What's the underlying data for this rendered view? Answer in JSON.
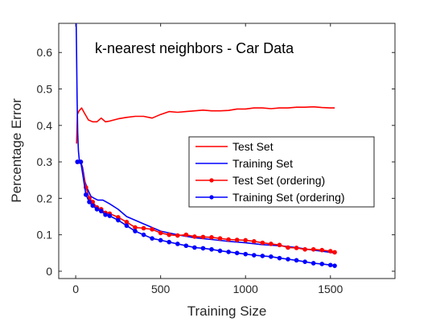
{
  "chart_data": {
    "type": "line",
    "title": "k-nearest neighbors - Car Data",
    "xlabel": "Training Size",
    "ylabel": "Percentage Error",
    "xlim": [
      -100,
      1880
    ],
    "ylim": [
      -0.02,
      0.68
    ],
    "xticks": [
      0,
      500,
      1000,
      1500
    ],
    "yticks": [
      0,
      0.1,
      0.2,
      0.3,
      0.4,
      0.5,
      0.6
    ],
    "xtick_labels": [
      "0",
      "500",
      "1000",
      "1500"
    ],
    "ytick_labels": [
      "0",
      "0.1",
      "0.2",
      "0.3",
      "0.4",
      "0.5",
      "0.6"
    ],
    "grid": false,
    "legend_position": "middle-right",
    "series": [
      {
        "name": "Test Set",
        "color": "#ff0000",
        "marker": "none",
        "x": [
          5,
          10,
          20,
          35,
          50,
          75,
          100,
          125,
          150,
          175,
          200,
          250,
          300,
          350,
          400,
          450,
          500,
          550,
          600,
          650,
          700,
          750,
          800,
          850,
          900,
          950,
          1000,
          1050,
          1100,
          1150,
          1200,
          1250,
          1300,
          1350,
          1400,
          1450,
          1500,
          1525
        ],
        "values": [
          0.35,
          0.43,
          0.44,
          0.448,
          0.435,
          0.415,
          0.41,
          0.41,
          0.42,
          0.41,
          0.412,
          0.418,
          0.422,
          0.425,
          0.425,
          0.42,
          0.43,
          0.438,
          0.436,
          0.438,
          0.44,
          0.442,
          0.44,
          0.44,
          0.441,
          0.445,
          0.445,
          0.448,
          0.448,
          0.446,
          0.448,
          0.448,
          0.45,
          0.45,
          0.451,
          0.449,
          0.448,
          0.448
        ]
      },
      {
        "name": "Training Set",
        "color": "#0000ff",
        "marker": "none",
        "x": [
          3,
          5,
          8,
          12,
          16,
          22,
          30,
          40,
          55,
          70,
          90,
          110,
          130,
          160,
          200,
          250,
          300,
          400,
          500,
          600,
          700,
          800,
          900,
          1000,
          1100,
          1200,
          1300,
          1400,
          1500,
          1525
        ],
        "values": [
          0.68,
          0.6,
          0.48,
          0.38,
          0.33,
          0.3,
          0.3,
          0.285,
          0.245,
          0.225,
          0.205,
          0.2,
          0.195,
          0.195,
          0.185,
          0.17,
          0.15,
          0.13,
          0.11,
          0.1,
          0.092,
          0.087,
          0.082,
          0.078,
          0.073,
          0.07,
          0.065,
          0.058,
          0.052,
          0.05
        ]
      },
      {
        "name": "Test Set (ordering)",
        "color": "#ff0000",
        "marker": "circle",
        "x": [
          10,
          30,
          60,
          80,
          100,
          125,
          150,
          175,
          200,
          250,
          300,
          350,
          400,
          450,
          500,
          550,
          600,
          650,
          700,
          750,
          800,
          850,
          900,
          950,
          1000,
          1050,
          1100,
          1150,
          1200,
          1250,
          1300,
          1350,
          1400,
          1450,
          1500,
          1525
        ],
        "values": [
          0.3,
          0.3,
          0.23,
          0.2,
          0.19,
          0.175,
          0.17,
          0.16,
          0.158,
          0.148,
          0.135,
          0.12,
          0.118,
          0.115,
          0.105,
          0.1,
          0.098,
          0.1,
          0.095,
          0.094,
          0.093,
          0.09,
          0.087,
          0.086,
          0.085,
          0.082,
          0.078,
          0.075,
          0.072,
          0.065,
          0.064,
          0.06,
          0.06,
          0.058,
          0.055,
          0.052
        ]
      },
      {
        "name": "Training Set (ordering)",
        "color": "#0000ff",
        "marker": "circle",
        "x": [
          10,
          30,
          60,
          80,
          100,
          125,
          150,
          175,
          200,
          250,
          300,
          350,
          400,
          450,
          500,
          550,
          600,
          650,
          700,
          750,
          800,
          850,
          900,
          950,
          1000,
          1050,
          1100,
          1150,
          1200,
          1250,
          1300,
          1350,
          1400,
          1450,
          1500,
          1525
        ],
        "values": [
          0.3,
          0.3,
          0.21,
          0.19,
          0.18,
          0.17,
          0.165,
          0.155,
          0.152,
          0.14,
          0.125,
          0.11,
          0.1,
          0.09,
          0.085,
          0.08,
          0.075,
          0.07,
          0.065,
          0.063,
          0.06,
          0.056,
          0.053,
          0.05,
          0.047,
          0.044,
          0.042,
          0.04,
          0.036,
          0.033,
          0.03,
          0.026,
          0.022,
          0.02,
          0.017,
          0.015
        ]
      }
    ]
  }
}
